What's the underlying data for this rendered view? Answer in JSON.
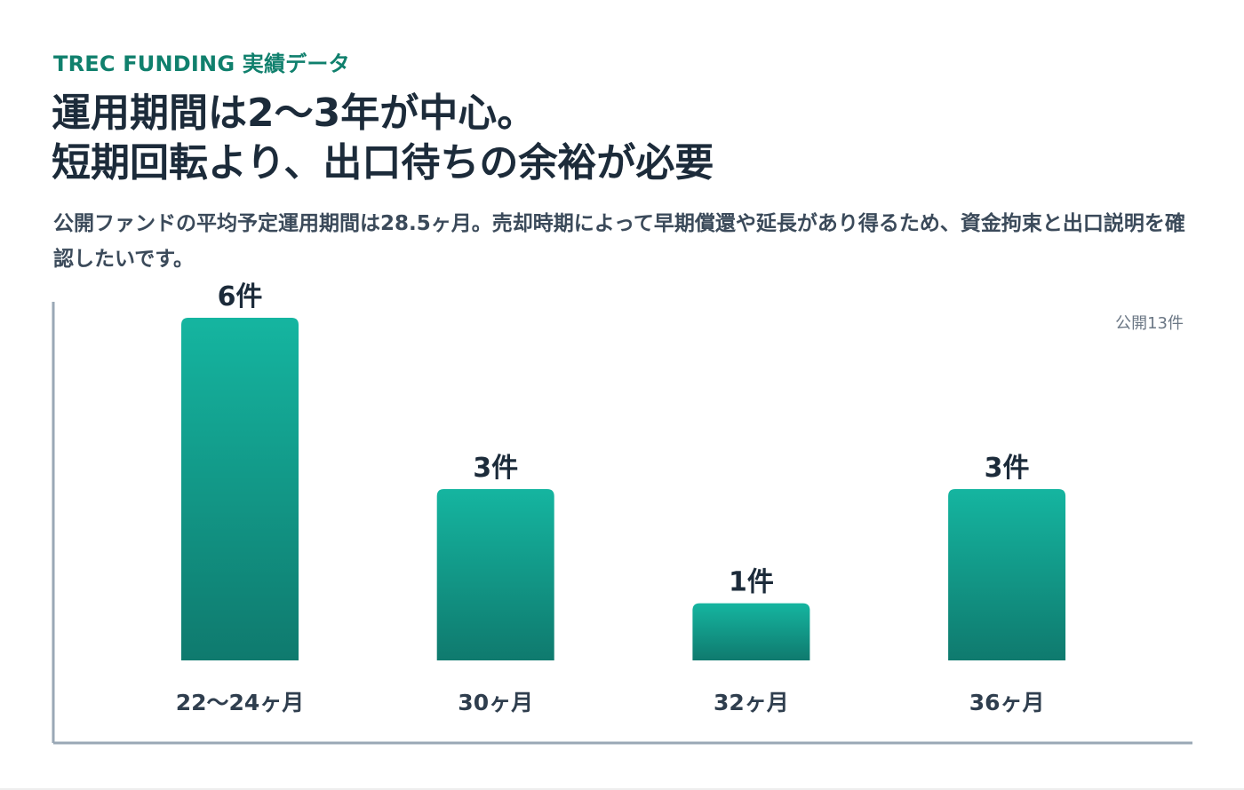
{
  "header": {
    "eyebrow": "TREC FUNDING 実績データ",
    "headline_line1": "運用期間は2〜3年が中心。",
    "headline_line2": "短期回転より、出口待ちの余裕が必要",
    "lead": "公開ファンドの平均予定運用期間は28.5ヶ月。売却時期によって早期償還や延長があり得るため、資金拘束と出口説明を確認したいです。"
  },
  "total_note": "公開13件",
  "colors": {
    "bar_top": "#15b5a0",
    "bar_bottom": "#0f7a6e",
    "axis": "#9aa8b6",
    "eyebrow": "#10806d"
  },
  "chart_data": {
    "type": "bar",
    "categories": [
      "22〜24ヶ月",
      "30ヶ月",
      "32ヶ月",
      "36ヶ月"
    ],
    "values": [
      6,
      3,
      1,
      3
    ],
    "value_labels": [
      "6件",
      "3件",
      "1件",
      "3件"
    ],
    "title": "",
    "xlabel": "",
    "ylabel": "",
    "ylim": [
      0,
      6
    ],
    "grid": false,
    "legend": "none"
  }
}
